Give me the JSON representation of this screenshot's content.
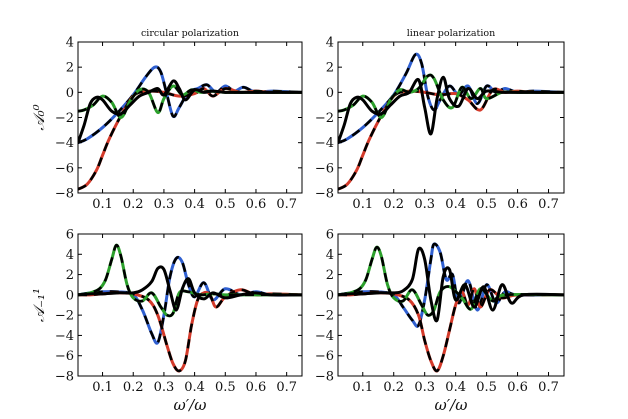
{
  "chart_data": [
    {
      "type": "line",
      "panel_id": "tl",
      "title": "circular polarization",
      "xlabel": "",
      "ylabel": "𝒜₀⁰",
      "xlim": [
        0.02,
        0.75
      ],
      "ylim": [
        -8,
        4
      ],
      "xticks": [
        0.1,
        0.2,
        0.3,
        0.4,
        0.5,
        0.6,
        0.7
      ],
      "xtick_labels": [
        "0.1",
        "0.2",
        "0.3",
        "0.4",
        "0.5",
        "0.6",
        "0.7"
      ],
      "yticks": [
        -8,
        -6,
        -4,
        -2,
        0,
        2,
        4
      ],
      "ytick_labels": [
        "−8",
        "−6",
        "−4",
        "−2",
        "0",
        "2",
        "4"
      ],
      "series": [
        {
          "color": "#2f5fd0",
          "x": [
            0.02,
            0.05,
            0.1,
            0.15,
            0.2,
            0.24,
            0.27,
            0.29,
            0.31,
            0.33,
            0.35,
            0.38,
            0.41,
            0.44,
            0.47,
            0.5,
            0.53,
            0.56,
            0.6,
            0.65,
            0.75
          ],
          "y": [
            -4,
            -3.7,
            -2.8,
            -1.6,
            -0.2,
            1.2,
            2.0,
            1.6,
            -0.2,
            -1.9,
            -1.2,
            0.0,
            0.3,
            0.6,
            0.0,
            0.5,
            0.1,
            0.4,
            0.0,
            0.1,
            0.0
          ]
        },
        {
          "color": "#d43a2a",
          "x": [
            0.02,
            0.05,
            0.08,
            0.1,
            0.12,
            0.15,
            0.18,
            0.2,
            0.22,
            0.26,
            0.3,
            0.35,
            0.4,
            0.43,
            0.46,
            0.5,
            0.55,
            0.6,
            0.65,
            0.75
          ],
          "y": [
            -7.7,
            -7.3,
            -6.2,
            -5.0,
            -3.8,
            -2.3,
            -1.0,
            -0.3,
            0.0,
            0.1,
            0.0,
            -0.3,
            -0.1,
            0.3,
            -0.3,
            0.3,
            0.0,
            0.1,
            0.0,
            0.0
          ]
        },
        {
          "color": "#2ca02c",
          "x": [
            0.02,
            0.04,
            0.07,
            0.1,
            0.13,
            0.16,
            0.19,
            0.22,
            0.25,
            0.28,
            0.3,
            0.33,
            0.36,
            0.39,
            0.42,
            0.45,
            0.5,
            0.55,
            0.6,
            0.75
          ],
          "y": [
            -1.5,
            -1.4,
            -1.0,
            -0.3,
            -0.8,
            -2.0,
            -0.7,
            0.2,
            0.0,
            -1.6,
            -0.5,
            0.5,
            -0.2,
            0.2,
            0.0,
            0.1,
            0.0,
            0.0,
            0.0,
            0.0
          ]
        },
        {
          "color": "#000000",
          "x": [
            0.02,
            0.04,
            0.06,
            0.08,
            0.1,
            0.13,
            0.16,
            0.19,
            0.22,
            0.25,
            0.28,
            0.3,
            0.33,
            0.35,
            0.37,
            0.4,
            0.43,
            0.46,
            0.5,
            0.55,
            0.6,
            0.75
          ],
          "y": [
            -4.0,
            -2.6,
            -0.9,
            -0.4,
            -0.6,
            -1.5,
            -1.7,
            -1.0,
            -0.3,
            0.0,
            0.3,
            -0.2,
            0.9,
            0.3,
            -0.6,
            0.2,
            0.0,
            0.1,
            0.0,
            0.0,
            0.0,
            0.0
          ]
        }
      ]
    },
    {
      "type": "line",
      "panel_id": "tr",
      "title": "linear polarization",
      "xlabel": "",
      "ylabel": "",
      "xlim": [
        0.02,
        0.75
      ],
      "ylim": [
        -8,
        4
      ],
      "xticks": [
        0.1,
        0.2,
        0.3,
        0.4,
        0.5,
        0.6,
        0.7
      ],
      "xtick_labels": [
        "0.1",
        "0.2",
        "0.3",
        "0.4",
        "0.5",
        "0.6",
        "0.7"
      ],
      "yticks": [
        -8,
        -6,
        -4,
        -2,
        0,
        2,
        4
      ],
      "ytick_labels": [
        "−8",
        "−6",
        "−4",
        "−2",
        "0",
        "2",
        "4"
      ],
      "series": [
        {
          "color": "#2f5fd0",
          "x": [
            0.02,
            0.05,
            0.1,
            0.15,
            0.2,
            0.24,
            0.27,
            0.29,
            0.31,
            0.33,
            0.35,
            0.38,
            0.41,
            0.44,
            0.47,
            0.5,
            0.53,
            0.56,
            0.6,
            0.65,
            0.75
          ],
          "y": [
            -4,
            -3.7,
            -2.8,
            -1.6,
            -0.2,
            1.5,
            3.0,
            2.3,
            -0.3,
            -1.4,
            -0.6,
            0.5,
            -0.2,
            0.5,
            -0.9,
            0.5,
            0.0,
            0.3,
            0.0,
            0.1,
            0.0
          ]
        },
        {
          "color": "#d43a2a",
          "x": [
            0.02,
            0.05,
            0.08,
            0.1,
            0.12,
            0.15,
            0.18,
            0.2,
            0.22,
            0.26,
            0.3,
            0.35,
            0.4,
            0.44,
            0.48,
            0.52,
            0.56,
            0.6,
            0.65,
            0.75
          ],
          "y": [
            -7.7,
            -7.3,
            -6.2,
            -5.0,
            -3.8,
            -2.3,
            -1.0,
            -0.3,
            0.0,
            0.1,
            0.0,
            -0.2,
            -0.1,
            -0.6,
            -1.4,
            0.2,
            0.0,
            0.1,
            0.0,
            0.0
          ]
        },
        {
          "color": "#2ca02c",
          "x": [
            0.02,
            0.04,
            0.07,
            0.1,
            0.13,
            0.16,
            0.19,
            0.22,
            0.25,
            0.28,
            0.31,
            0.33,
            0.36,
            0.39,
            0.42,
            0.45,
            0.48,
            0.5,
            0.55,
            0.6,
            0.75
          ],
          "y": [
            -1.5,
            -1.4,
            -1.0,
            -0.3,
            -0.8,
            -2.0,
            -0.6,
            0.2,
            0.0,
            0.3,
            1.3,
            1.1,
            -0.6,
            -1.2,
            0.4,
            -0.5,
            0.3,
            -0.5,
            0.0,
            0.0,
            0.0
          ]
        },
        {
          "color": "#000000",
          "x": [
            0.02,
            0.04,
            0.06,
            0.08,
            0.1,
            0.13,
            0.16,
            0.19,
            0.22,
            0.25,
            0.28,
            0.3,
            0.32,
            0.34,
            0.36,
            0.38,
            0.41,
            0.44,
            0.47,
            0.5,
            0.55,
            0.6,
            0.75
          ],
          "y": [
            -4.0,
            -2.6,
            -0.9,
            -0.4,
            -0.6,
            -1.5,
            -1.7,
            -1.0,
            -0.3,
            0.0,
            1.0,
            -1.2,
            -3.3,
            -0.5,
            1.2,
            -0.5,
            -1.1,
            0.3,
            -0.5,
            0.1,
            0.0,
            0.0,
            0.0
          ]
        }
      ]
    },
    {
      "type": "line",
      "panel_id": "bl",
      "title": "",
      "xlabel": "ω′/ω",
      "ylabel": "𝒜₋₁¹",
      "xlim": [
        0.02,
        0.75
      ],
      "ylim": [
        -8,
        6
      ],
      "xticks": [
        0.1,
        0.2,
        0.3,
        0.4,
        0.5,
        0.6,
        0.7
      ],
      "xtick_labels": [
        "0.1",
        "0.2",
        "0.3",
        "0.4",
        "0.5",
        "0.6",
        "0.7"
      ],
      "yticks": [
        -8,
        -6,
        -4,
        -2,
        0,
        2,
        4,
        6
      ],
      "ytick_labels": [
        "−8",
        "−6",
        "−4",
        "−2",
        "0",
        "2",
        "4",
        "6"
      ],
      "series": [
        {
          "color": "#2f5fd0",
          "x": [
            0.02,
            0.06,
            0.1,
            0.15,
            0.2,
            0.23,
            0.26,
            0.28,
            0.3,
            0.32,
            0.34,
            0.36,
            0.38,
            0.4,
            0.43,
            0.46,
            0.5,
            0.55,
            0.6,
            0.65,
            0.75
          ],
          "y": [
            0.0,
            0.2,
            0.3,
            0.3,
            0.0,
            -1.5,
            -3.8,
            -4.7,
            -2.0,
            1.8,
            3.6,
            3.2,
            1.0,
            -0.2,
            1.2,
            -0.5,
            0.6,
            0.0,
            0.3,
            0.0,
            0.0
          ]
        },
        {
          "color": "#d43a2a",
          "x": [
            0.02,
            0.06,
            0.1,
            0.15,
            0.2,
            0.25,
            0.28,
            0.31,
            0.33,
            0.35,
            0.37,
            0.39,
            0.41,
            0.43,
            0.45,
            0.47,
            0.5,
            0.55,
            0.6,
            0.65,
            0.75
          ],
          "y": [
            0.0,
            0.0,
            0.1,
            0.2,
            0.1,
            -0.5,
            -2.0,
            -5.0,
            -6.8,
            -7.5,
            -6.5,
            -3.0,
            -0.5,
            0.2,
            0.0,
            -1.2,
            -0.2,
            0.5,
            0.0,
            0.1,
            0.0
          ]
        },
        {
          "color": "#2ca02c",
          "x": [
            0.02,
            0.06,
            0.09,
            0.11,
            0.13,
            0.145,
            0.16,
            0.18,
            0.2,
            0.23,
            0.26,
            0.29,
            0.31,
            0.33,
            0.35,
            0.38,
            0.42,
            0.46,
            0.5,
            0.55,
            0.75
          ],
          "y": [
            0.0,
            0.2,
            0.6,
            1.5,
            3.5,
            4.9,
            3.8,
            1.0,
            -0.3,
            -0.6,
            0.2,
            -1.2,
            -2.0,
            -1.8,
            0.2,
            0.3,
            0.0,
            0.1,
            0.0,
            0.0,
            0.0
          ]
        },
        {
          "color": "#000000",
          "x": [
            0.02,
            0.06,
            0.1,
            0.15,
            0.2,
            0.23,
            0.26,
            0.28,
            0.3,
            0.32,
            0.34,
            0.36,
            0.38,
            0.4,
            0.43,
            0.46,
            0.5,
            0.55,
            0.6,
            0.65,
            0.75
          ],
          "y": [
            0.0,
            0.1,
            0.1,
            0.2,
            0.2,
            0.5,
            1.3,
            2.6,
            2.5,
            0.4,
            -1.5,
            0.6,
            1.6,
            0.2,
            -0.4,
            0.2,
            -0.3,
            0.0,
            0.2,
            0.0,
            0.0
          ]
        }
      ]
    },
    {
      "type": "line",
      "panel_id": "br",
      "title": "",
      "xlabel": "ω′/ω",
      "ylabel": "",
      "xlim": [
        0.02,
        0.75
      ],
      "ylim": [
        -8,
        6
      ],
      "xticks": [
        0.1,
        0.2,
        0.3,
        0.4,
        0.5,
        0.6,
        0.7
      ],
      "xtick_labels": [
        "0.1",
        "0.2",
        "0.3",
        "0.4",
        "0.5",
        "0.6",
        "0.7"
      ],
      "yticks": [
        -8,
        -6,
        -4,
        -2,
        0,
        2,
        4,
        6
      ],
      "ytick_labels": [
        "−8",
        "−6",
        "−4",
        "−2",
        "0",
        "2",
        "4",
        "6"
      ],
      "series": [
        {
          "color": "#2f5fd0",
          "x": [
            0.02,
            0.06,
            0.1,
            0.15,
            0.2,
            0.23,
            0.26,
            0.28,
            0.3,
            0.32,
            0.33,
            0.35,
            0.37,
            0.39,
            0.41,
            0.44,
            0.47,
            0.5,
            0.53,
            0.56,
            0.6,
            0.75
          ],
          "y": [
            0.0,
            0.2,
            0.3,
            0.3,
            0.0,
            -1.2,
            -2.5,
            -3.0,
            -0.5,
            3.5,
            5.0,
            4.2,
            1.5,
            2.0,
            -0.8,
            1.4,
            -1.5,
            1.0,
            -0.8,
            0.3,
            0.0,
            0.0
          ]
        },
        {
          "color": "#d43a2a",
          "x": [
            0.02,
            0.06,
            0.1,
            0.15,
            0.2,
            0.25,
            0.28,
            0.3,
            0.32,
            0.34,
            0.36,
            0.38,
            0.4,
            0.42,
            0.44,
            0.46,
            0.48,
            0.51,
            0.55,
            0.6,
            0.75
          ],
          "y": [
            0.0,
            0.0,
            0.1,
            0.2,
            0.1,
            -0.5,
            -2.0,
            -4.5,
            -6.5,
            -7.5,
            -6.0,
            -3.5,
            -1.0,
            0.3,
            -1.0,
            0.6,
            -1.2,
            0.5,
            -0.3,
            0.0,
            0.0
          ]
        },
        {
          "color": "#2ca02c",
          "x": [
            0.02,
            0.06,
            0.09,
            0.11,
            0.13,
            0.145,
            0.16,
            0.18,
            0.2,
            0.23,
            0.26,
            0.29,
            0.31,
            0.33,
            0.35,
            0.38,
            0.42,
            0.45,
            0.48,
            0.52,
            0.56,
            0.75
          ],
          "y": [
            0.0,
            0.2,
            0.6,
            1.5,
            3.5,
            4.7,
            3.8,
            1.0,
            -0.3,
            -0.6,
            0.5,
            -1.0,
            -2.0,
            -1.5,
            0.3,
            0.8,
            -0.3,
            -1.4,
            0.6,
            -0.6,
            0.0,
            0.0
          ]
        },
        {
          "color": "#000000",
          "x": [
            0.02,
            0.06,
            0.1,
            0.15,
            0.2,
            0.23,
            0.26,
            0.28,
            0.3,
            0.32,
            0.34,
            0.36,
            0.38,
            0.4,
            0.43,
            0.46,
            0.49,
            0.52,
            0.55,
            0.58,
            0.62,
            0.75
          ],
          "y": [
            0.0,
            0.1,
            0.1,
            0.2,
            0.2,
            0.4,
            1.5,
            4.5,
            3.5,
            -0.5,
            -2.5,
            1.8,
            2.5,
            -0.5,
            1.0,
            -1.2,
            0.8,
            -1.5,
            1.0,
            -0.8,
            0.0,
            0.0
          ]
        }
      ]
    }
  ]
}
